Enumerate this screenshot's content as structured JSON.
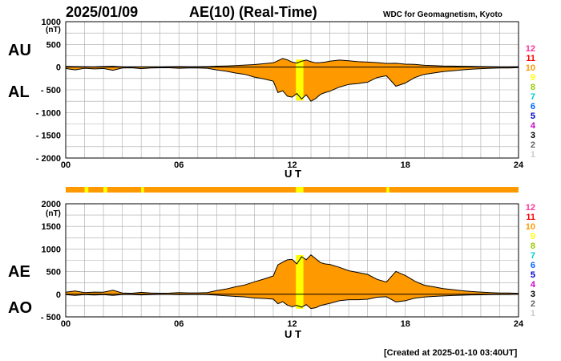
{
  "header": {
    "date": "2025/01/09",
    "title": "AE(10) (Real-Time)",
    "source": "WDC for Geomagnetism, Kyoto"
  },
  "footer": "[Created at 2025-01-10 03:40UT]",
  "colors": {
    "fill": "#ff9900",
    "highlight": "#ffff00",
    "grid": "#aaaaaa",
    "axis": "#000000"
  },
  "chart_data": [
    {
      "type": "area",
      "labels": [
        "AU",
        "AL"
      ],
      "unit_label": "(nT)",
      "xlabel": "U T",
      "xlim": [
        0,
        24
      ],
      "ylim": [
        -2000,
        1000
      ],
      "xticks": [
        0,
        6,
        12,
        18,
        24
      ],
      "xtick_labels": [
        "00",
        "06",
        "12",
        "18",
        "24"
      ],
      "yticks": [
        -2000,
        -1500,
        -1000,
        -500,
        0,
        500,
        1000
      ],
      "ytick_labels": [
        "- 2000",
        "- 1500",
        "- 1000",
        "- 500",
        "0",
        "500",
        "1000"
      ],
      "grid": true,
      "highlight_hours": [
        12.2,
        12.6
      ],
      "series": [
        {
          "name": "AU",
          "x": [
            0,
            0.5,
            1,
            1.5,
            2,
            2.5,
            3,
            3.5,
            4,
            4.5,
            5,
            5.5,
            6,
            6.5,
            7,
            7.5,
            8,
            8.5,
            9,
            9.5,
            10,
            10.5,
            11,
            11.25,
            11.5,
            11.75,
            12,
            12.25,
            12.5,
            12.75,
            13,
            13.25,
            13.5,
            13.75,
            14,
            14.5,
            15,
            15.5,
            16,
            16.5,
            17,
            17.5,
            18,
            18.5,
            19,
            19.5,
            20,
            20.5,
            21,
            21.5,
            22,
            22.5,
            23,
            23.5,
            24
          ],
          "values": [
            15,
            12,
            10,
            8,
            14,
            18,
            8,
            6,
            8,
            6,
            8,
            10,
            12,
            10,
            10,
            12,
            20,
            25,
            35,
            45,
            55,
            75,
            95,
            140,
            190,
            160,
            110,
            90,
            130,
            155,
            120,
            95,
            100,
            110,
            130,
            155,
            140,
            120,
            110,
            100,
            80,
            85,
            65,
            60,
            40,
            35,
            25,
            22,
            18,
            15,
            12,
            10,
            8,
            8,
            10
          ]
        },
        {
          "name": "AL",
          "x": [
            0,
            0.5,
            1,
            1.5,
            2,
            2.5,
            3,
            3.5,
            4,
            4.5,
            5,
            5.5,
            6,
            6.5,
            7,
            7.5,
            8,
            8.5,
            9,
            9.5,
            10,
            10.5,
            11,
            11.25,
            11.5,
            11.75,
            12,
            12.25,
            12.5,
            12.75,
            13,
            13.25,
            13.5,
            13.75,
            14,
            14.5,
            15,
            15.5,
            16,
            16.5,
            17,
            17.5,
            18,
            18.5,
            19,
            19.5,
            20,
            20.5,
            21,
            21.5,
            22,
            22.5,
            23,
            23.5,
            24
          ],
          "values": [
            -30,
            -60,
            -25,
            -40,
            -30,
            -70,
            -20,
            -15,
            -35,
            -20,
            -15,
            -15,
            -25,
            -20,
            -20,
            -25,
            -60,
            -90,
            -130,
            -160,
            -220,
            -260,
            -310,
            -560,
            -520,
            -640,
            -660,
            -580,
            -700,
            -610,
            -750,
            -690,
            -600,
            -560,
            -530,
            -440,
            -380,
            -360,
            -330,
            -230,
            -190,
            -420,
            -350,
            -230,
            -160,
            -130,
            -100,
            -80,
            -60,
            -45,
            -35,
            -25,
            -20,
            -20,
            -10
          ]
        }
      ]
    },
    {
      "type": "area",
      "labels": [
        "AE",
        "AO"
      ],
      "unit_label": "(nT)",
      "xlabel": "",
      "xlim": [
        0,
        24
      ],
      "ylim": [
        -500,
        2000
      ],
      "xticks": [
        0,
        6,
        12,
        18,
        24
      ],
      "xtick_labels": [
        "00",
        "06",
        "12",
        "18",
        "24"
      ],
      "yticks": [
        -500,
        0,
        500,
        1000,
        1500,
        2000
      ],
      "ytick_labels": [
        "- 500",
        "0",
        "500",
        "1000",
        "1500",
        "2000"
      ],
      "grid": true,
      "highlight_hours": [
        12.2,
        12.6
      ],
      "series": [
        {
          "name": "AE",
          "x": [
            0,
            0.5,
            1,
            1.5,
            2,
            2.5,
            3,
            3.5,
            4,
            4.5,
            5,
            5.5,
            6,
            6.5,
            7,
            7.5,
            8,
            8.5,
            9,
            9.5,
            10,
            10.5,
            11,
            11.25,
            11.5,
            11.75,
            12,
            12.25,
            12.5,
            12.75,
            13,
            13.25,
            13.5,
            13.75,
            14,
            14.5,
            15,
            15.5,
            16,
            16.5,
            17,
            17.5,
            18,
            18.5,
            19,
            19.5,
            20,
            20.5,
            21,
            21.5,
            22,
            22.5,
            23,
            23.5,
            24
          ],
          "values": [
            45,
            72,
            35,
            48,
            44,
            88,
            28,
            21,
            43,
            26,
            23,
            25,
            37,
            30,
            30,
            37,
            80,
            115,
            165,
            205,
            275,
            335,
            405,
            650,
            710,
            760,
            770,
            670,
            830,
            765,
            870,
            785,
            700,
            670,
            660,
            595,
            520,
            480,
            440,
            330,
            270,
            505,
            415,
            290,
            200,
            165,
            125,
            102,
            78,
            60,
            47,
            35,
            28,
            28,
            20
          ]
        },
        {
          "name": "AO",
          "x": [
            0,
            0.5,
            1,
            1.5,
            2,
            2.5,
            3,
            3.5,
            4,
            4.5,
            5,
            5.5,
            6,
            6.5,
            7,
            7.5,
            8,
            8.5,
            9,
            9.5,
            10,
            10.5,
            11,
            11.25,
            11.5,
            11.75,
            12,
            12.25,
            12.5,
            12.75,
            13,
            13.25,
            13.5,
            13.75,
            14,
            14.5,
            15,
            15.5,
            16,
            16.5,
            17,
            17.5,
            18,
            18.5,
            19,
            19.5,
            20,
            20.5,
            21,
            21.5,
            22,
            22.5,
            23,
            23.5,
            24
          ],
          "values": [
            -8,
            -24,
            -8,
            -16,
            -8,
            -26,
            -6,
            -5,
            -14,
            -7,
            -4,
            -3,
            -7,
            -5,
            -5,
            -7,
            -20,
            -33,
            -48,
            -58,
            -83,
            -93,
            -108,
            -210,
            -165,
            -240,
            -275,
            -245,
            -285,
            -228,
            -315,
            -298,
            -250,
            -225,
            -200,
            -143,
            -120,
            -120,
            -110,
            -65,
            -55,
            -168,
            -143,
            -85,
            -60,
            -48,
            -38,
            -29,
            -21,
            -15,
            -12,
            -8,
            -6,
            -6,
            0
          ]
        }
      ]
    }
  ],
  "status_bar": {
    "base": "#ff9900",
    "highlights": [
      [
        1.0,
        1.2
      ],
      [
        2.0,
        2.2
      ],
      [
        4.0,
        4.15
      ],
      [
        12.2,
        12.6
      ],
      [
        17.0,
        17.15
      ]
    ],
    "highlight_color": "#ffff00"
  },
  "station_levels": {
    "items": [
      {
        "label": "12",
        "color": "#ff3399"
      },
      {
        "label": "11",
        "color": "#ff0000"
      },
      {
        "label": "10",
        "color": "#ff9900"
      },
      {
        "label": "9",
        "color": "#ffff00"
      },
      {
        "label": "8",
        "color": "#99cc00"
      },
      {
        "label": "7",
        "color": "#00cccc"
      },
      {
        "label": "6",
        "color": "#0066ff"
      },
      {
        "label": "5",
        "color": "#0000cc"
      },
      {
        "label": "4",
        "color": "#cc00cc"
      },
      {
        "label": "3",
        "color": "#000000"
      },
      {
        "label": "2",
        "color": "#666666"
      },
      {
        "label": "1",
        "color": "#cccccc"
      }
    ]
  }
}
